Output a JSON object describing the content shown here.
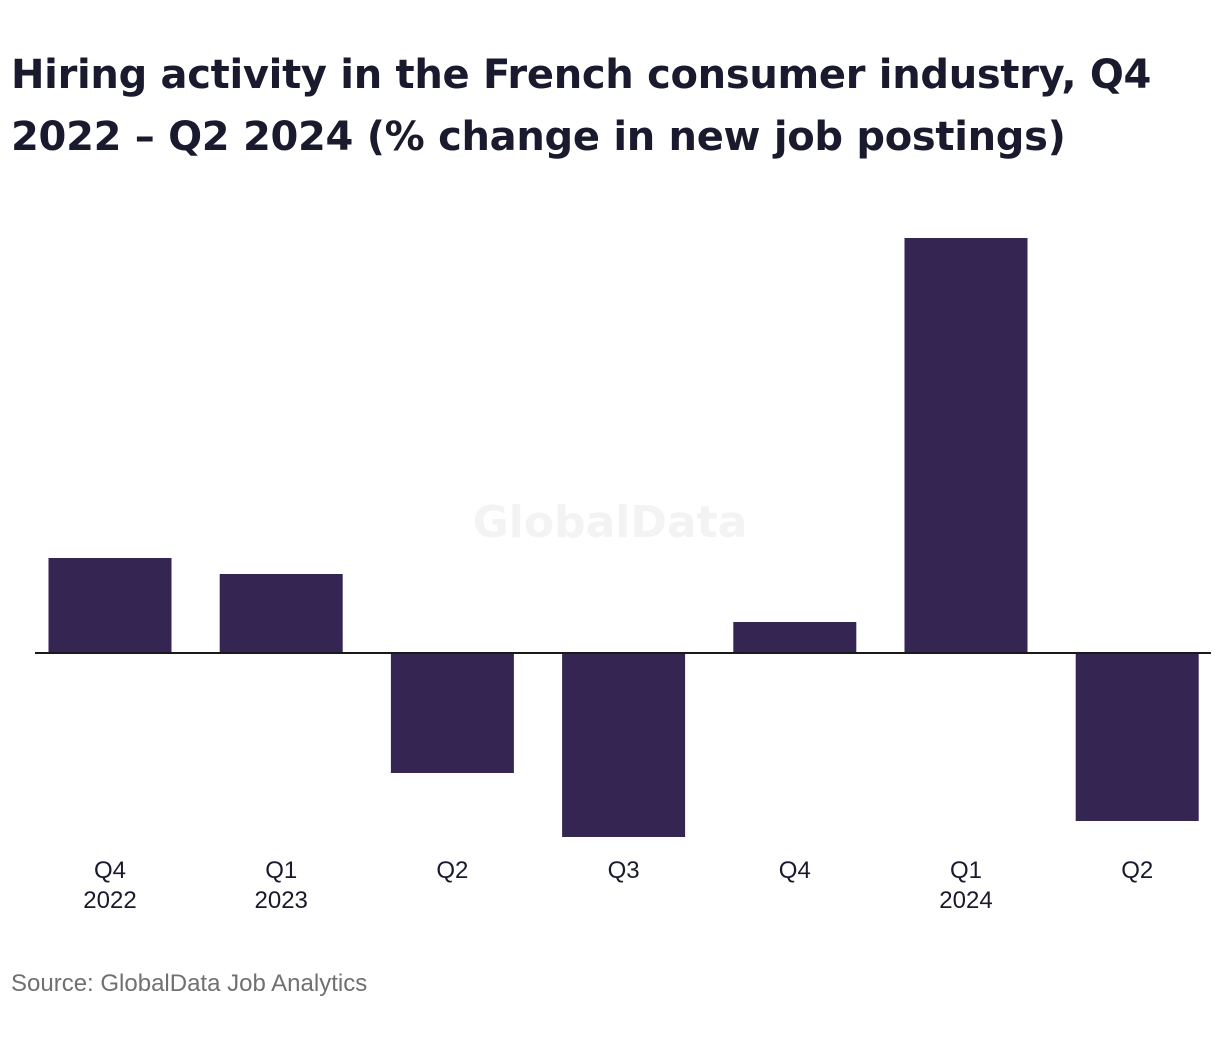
{
  "title": "Hiring activity in the French consumer industry, Q4 2022 – Q2 2024 (% change in new job postings)",
  "source": "Source: GlobalData Job Analytics",
  "watermark": "GlobalData",
  "colors": {
    "bar": "#352552",
    "axis": "#1a1a1a",
    "text": "#1a1a2e",
    "muted": "#707070"
  },
  "chart_data": {
    "type": "bar",
    "title": "Hiring activity in the French consumer industry, Q4 2022 – Q2 2024 (% change in new job postings)",
    "categories": [
      [
        "Q4",
        "2022"
      ],
      [
        "Q1",
        "2023"
      ],
      [
        "Q2",
        ""
      ],
      [
        "Q3",
        ""
      ],
      [
        "Q4",
        ""
      ],
      [
        "Q1",
        "2024"
      ],
      [
        "Q2",
        ""
      ]
    ],
    "values": [
      9.5,
      7.9,
      -12.0,
      -18.4,
      3.1,
      41.5,
      -16.8
    ],
    "xlabel": "",
    "ylabel": "",
    "ylim": [
      -19,
      44
    ],
    "grid": false,
    "legend": "none"
  }
}
